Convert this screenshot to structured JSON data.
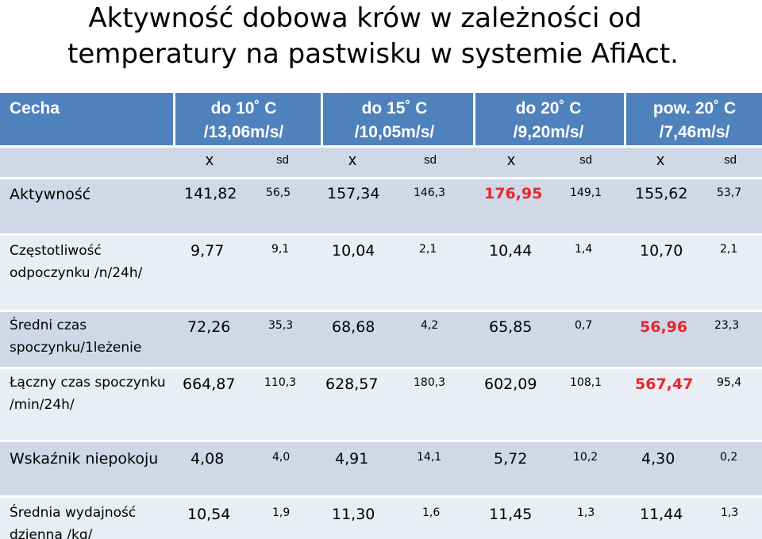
{
  "title": {
    "line1": "Aktywność dobowa krów w zależności od",
    "line2": "temperatury na pastwisku w systemie AfiAct."
  },
  "header": {
    "cecha": "Cecha",
    "groups": [
      {
        "line1": "do 10˚ C",
        "line2": "/13,06m/s/"
      },
      {
        "line1": "do 15˚ C",
        "line2": "/10,05m/s/"
      },
      {
        "line1": "do 20˚ C",
        "line2": "/9,20m/s/"
      },
      {
        "line1": "pow. 20˚ C",
        "line2": "/7,46m/s/"
      }
    ],
    "x_label": "x",
    "sd_label": "sd"
  },
  "rows": [
    {
      "label": "Aktywność",
      "cells": [
        {
          "x": "141,82",
          "sd": "56,5"
        },
        {
          "x": "157,34",
          "sd": "146,3"
        },
        {
          "x": "176,95",
          "sd": "149,1",
          "highlight": true
        },
        {
          "x": "155,62",
          "sd": "53,7"
        }
      ]
    },
    {
      "label": "Częstotliwość odpoczynku /n/24h/",
      "cells": [
        {
          "x": "9,77",
          "sd": "9,1"
        },
        {
          "x": "10,04",
          "sd": "2,1"
        },
        {
          "x": "10,44",
          "sd": "1,4"
        },
        {
          "x": "10,70",
          "sd": "2,1"
        }
      ]
    },
    {
      "label": "Średni czas spoczynku/1leżenie",
      "cells": [
        {
          "x": "72,26",
          "sd": "35,3"
        },
        {
          "x": "68,68",
          "sd": "4,2"
        },
        {
          "x": "65,85",
          "sd": "0,7"
        },
        {
          "x": "56,96",
          "sd": "23,3",
          "highlight": true
        }
      ]
    },
    {
      "label": "Łączny czas spoczynku /min/24h/",
      "cells": [
        {
          "x": "664,87",
          "sd": "110,3"
        },
        {
          "x": "628,57",
          "sd": "180,3"
        },
        {
          "x": "602,09",
          "sd": "108,1"
        },
        {
          "x": "567,47",
          "sd": "95,4",
          "highlight": true
        }
      ]
    },
    {
      "label": "Wskaźnik niepokoju",
      "cells": [
        {
          "x": "4,08",
          "sd": "4,0"
        },
        {
          "x": "4,91",
          "sd": "14,1"
        },
        {
          "x": "5,72",
          "sd": "10,2"
        },
        {
          "x": "4,30",
          "sd": "0,2"
        }
      ]
    },
    {
      "label": "Średnia wydajność dzienna /kg/",
      "cells": [
        {
          "x": "10,54",
          "sd": "1,9"
        },
        {
          "x": "11,30",
          "sd": "1,6"
        },
        {
          "x": "11,45",
          "sd": "1,3"
        },
        {
          "x": "11,44",
          "sd": "1,3"
        }
      ]
    }
  ]
}
